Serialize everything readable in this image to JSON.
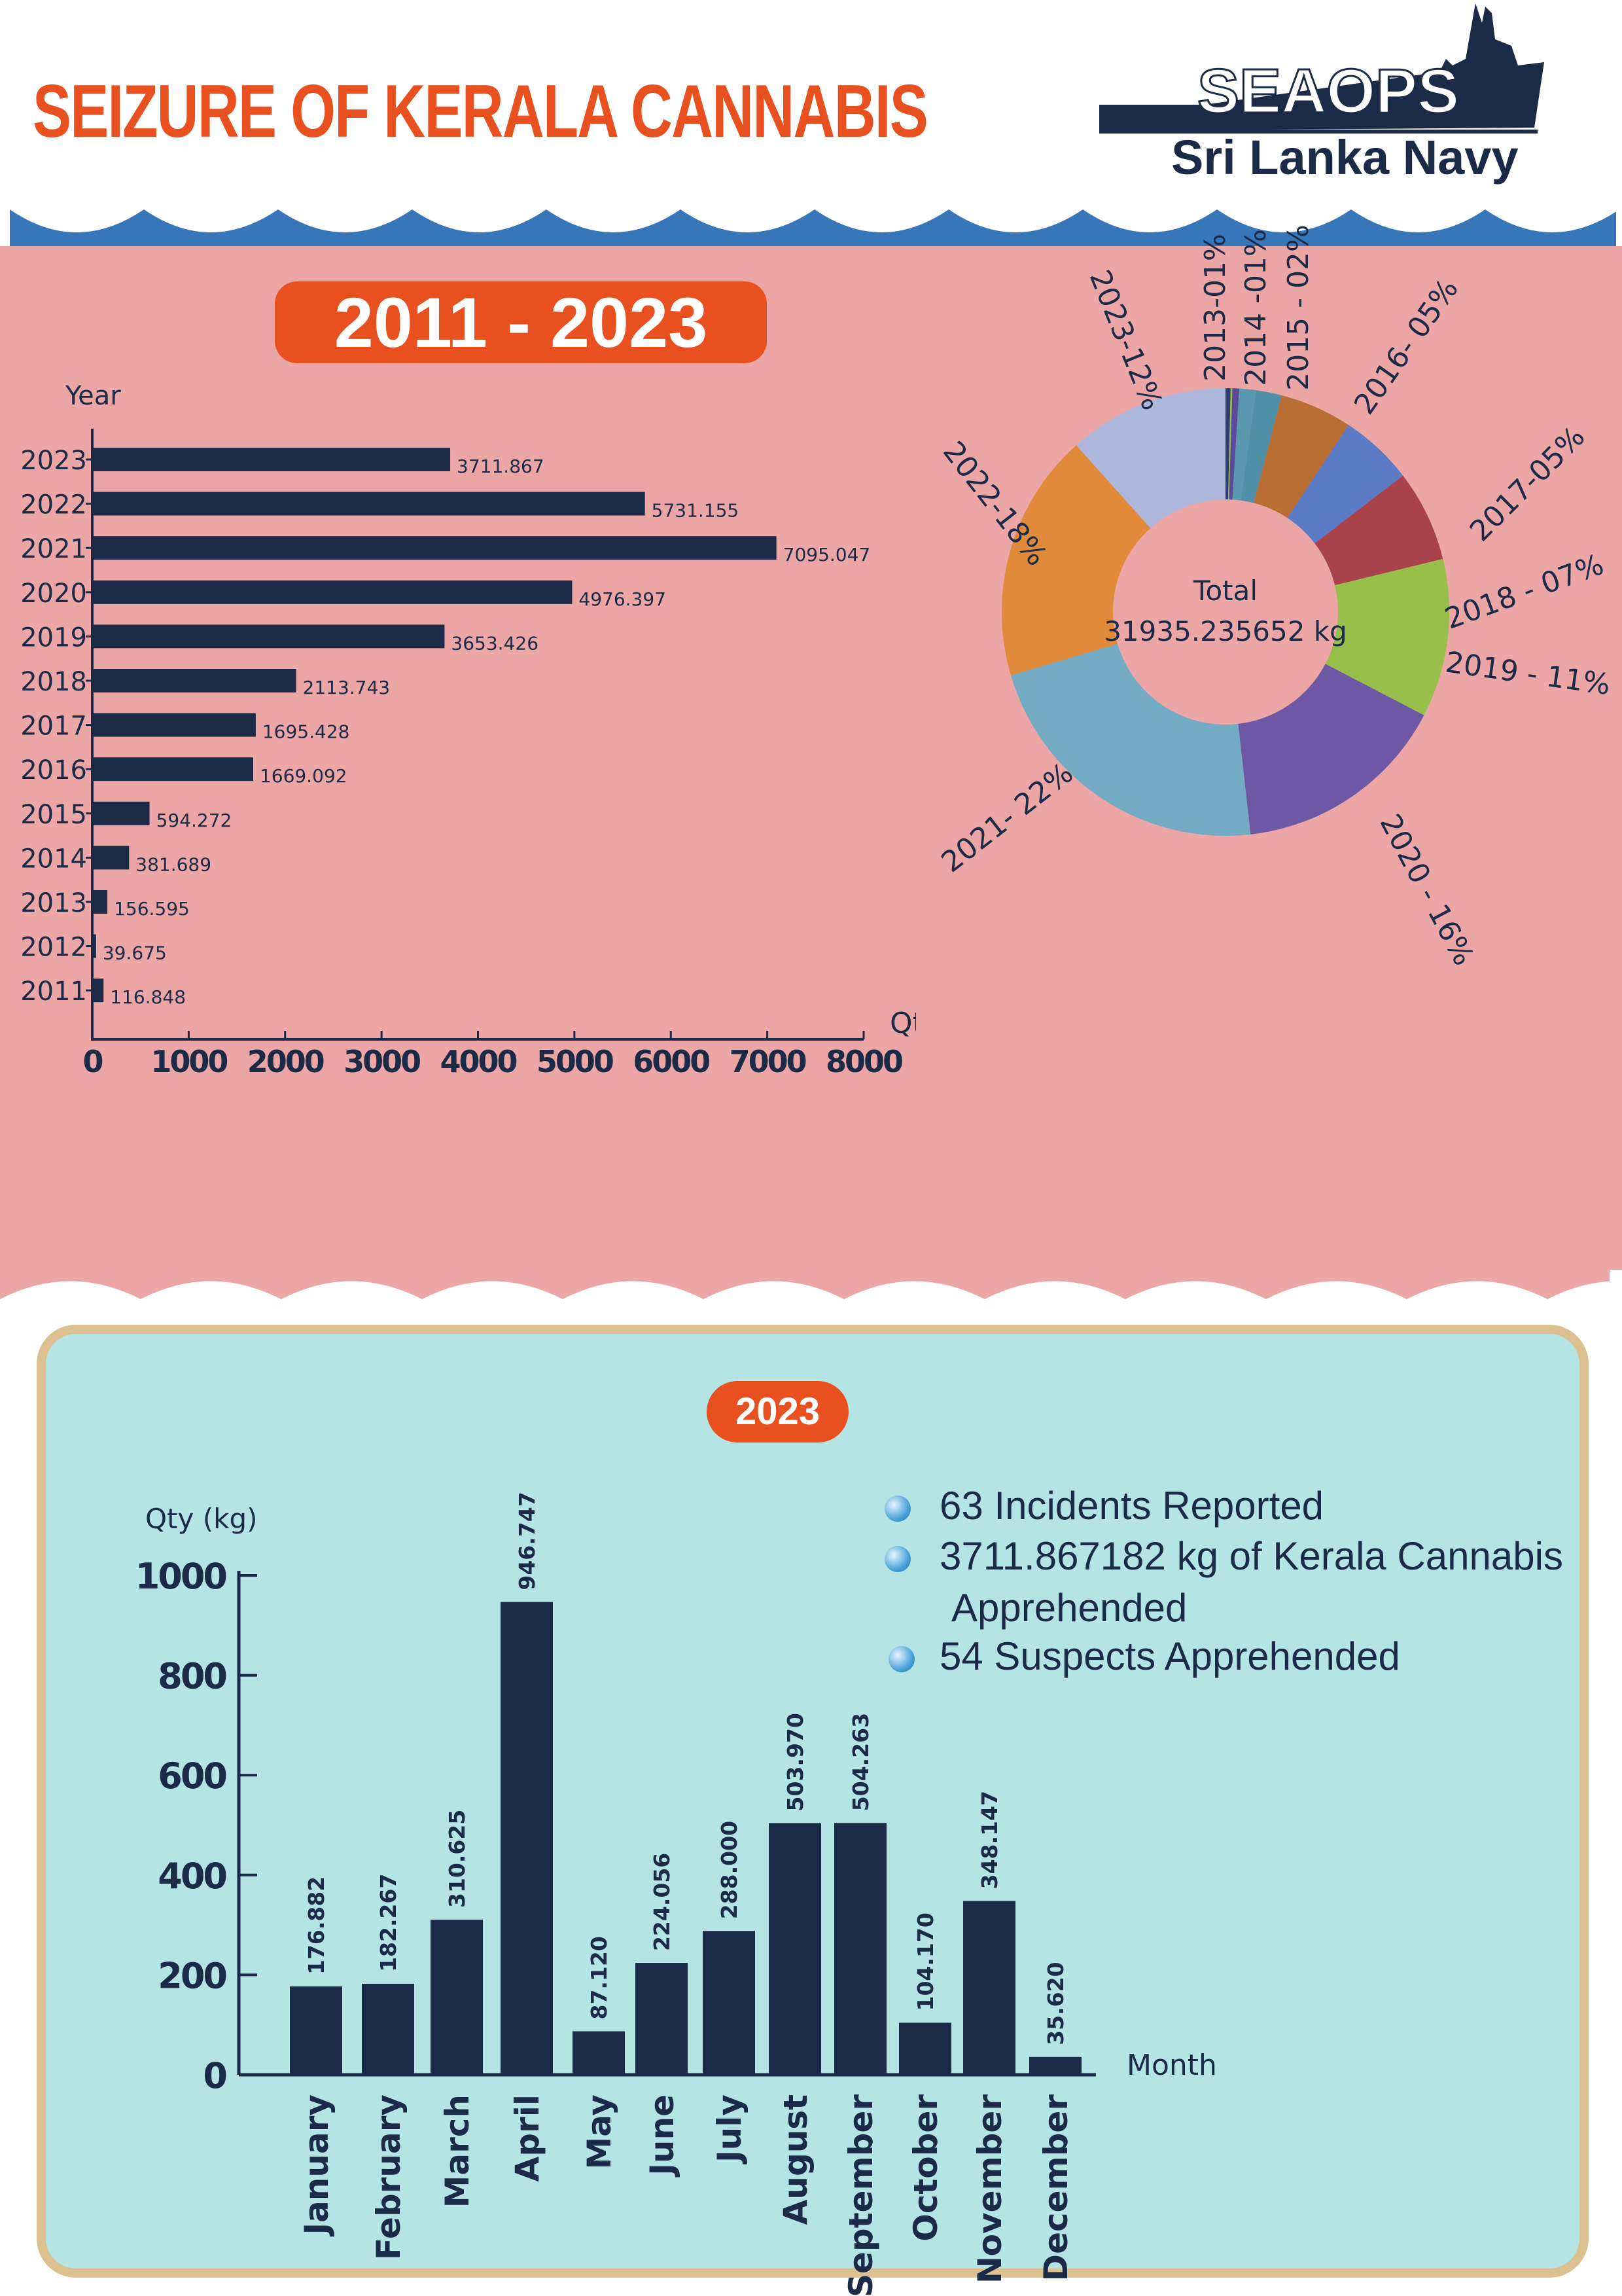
{
  "header": {
    "title": "SEIZURE OF KERALA CANNABIS",
    "logo_name": "SEAOPS",
    "logo_sub": "Sri Lanka Navy"
  },
  "colors": {
    "accent": "#e9501f",
    "navy": "#1b2a47",
    "pink": "#eba6a5",
    "wave": "#3776b8",
    "panel": "#b5e4e4"
  },
  "period_badge": "2011 - 2023",
  "year_badge": "2023",
  "bullets": [
    "63 Incidents Reported",
    "3711.867182 kg of Kerala Cannabis",
    "Apprehended",
    "54 Suspects Apprehended"
  ],
  "chart_data": [
    {
      "type": "bar",
      "orientation": "horizontal",
      "ylabel": "Year",
      "xlabel": "Qty ( kg )",
      "xlim": [
        0,
        8000
      ],
      "xticks": [
        "0",
        "1000",
        "2000",
        "3000",
        "4000",
        "5000",
        "6000",
        "7000",
        "8000"
      ],
      "categories": [
        "2023",
        "2022",
        "2021",
        "2020",
        "2019",
        "2018",
        "2017",
        "2016",
        "2015",
        "2014",
        "2013",
        "2012",
        "2011"
      ],
      "values": [
        3711.867,
        5731.155,
        7095.047,
        4976.397,
        3653.426,
        2113.743,
        1695.428,
        1669.092,
        594.272,
        381.689,
        156.595,
        39.675,
        116.848
      ],
      "value_labels": [
        "3711.867",
        "5731.155",
        "7095.047",
        "4976.397",
        "3653.426",
        "2113.743",
        "1695.428",
        "1669.092",
        "594.272",
        "381.689",
        "156.595",
        "39.675",
        "116.848"
      ]
    },
    {
      "type": "pie",
      "donut": true,
      "center_title": "Total",
      "center_value": "31935.235652 kg",
      "slices": [
        {
          "year": "2011",
          "value": 116.848,
          "color": "#2e3d6e"
        },
        {
          "year": "2012",
          "value": 39.675,
          "color": "#9bbf4a"
        },
        {
          "year": "2013",
          "value": 156.595,
          "color": "#5a4a9c",
          "label": "2013-01%"
        },
        {
          "year": "2014",
          "value": 381.689,
          "color": "#5a98b0",
          "label": "2014 -01%"
        },
        {
          "year": "2015",
          "value": 594.272,
          "color": "#4f8fa8",
          "label": "2015 - 02%"
        },
        {
          "year": "2016",
          "value": 1669.092,
          "color": "#b96e33",
          "label": "2016- 05%"
        },
        {
          "year": "2017",
          "value": 1695.428,
          "color": "#5b7bc6",
          "label": "2017-05%"
        },
        {
          "year": "2018",
          "value": 2113.743,
          "color": "#a9424a",
          "label": "2018 - 07%"
        },
        {
          "year": "2019",
          "value": 3653.426,
          "color": "#98bf4a",
          "label": "2019 - 11%"
        },
        {
          "year": "2020",
          "value": 4976.397,
          "color": "#6e58a6",
          "label": "2020 - 16%"
        },
        {
          "year": "2021",
          "value": 7095.047,
          "color": "#73abc4",
          "label": "2021- 22%"
        },
        {
          "year": "2022",
          "value": 5731.155,
          "color": "#e08a3a",
          "label": "2022-18%"
        },
        {
          "year": "2023",
          "value": 3711.867,
          "color": "#adb6db",
          "label": "2023-12%"
        }
      ]
    },
    {
      "type": "bar",
      "title": "2023",
      "ylabel": "Qty (kg)",
      "xlabel": "Month",
      "ylim": [
        0,
        1000
      ],
      "yticks": [
        "0",
        "200",
        "400",
        "600",
        "800",
        "1000"
      ],
      "categories": [
        "January",
        "February",
        "March",
        "April",
        "May",
        "June",
        "July",
        "August",
        "September",
        "October",
        "November",
        "December"
      ],
      "values": [
        176.882,
        182.267,
        310.625,
        946.747,
        87.12,
        224.056,
        288.0,
        503.97,
        504.263,
        104.17,
        348.147,
        35.62
      ],
      "value_labels": [
        "176.882",
        "182.267",
        "310.625",
        "946.747",
        "87.120",
        "224.056",
        "288.000",
        "503.970",
        "504.263",
        "104.170",
        "348.147",
        "35.620"
      ]
    }
  ]
}
